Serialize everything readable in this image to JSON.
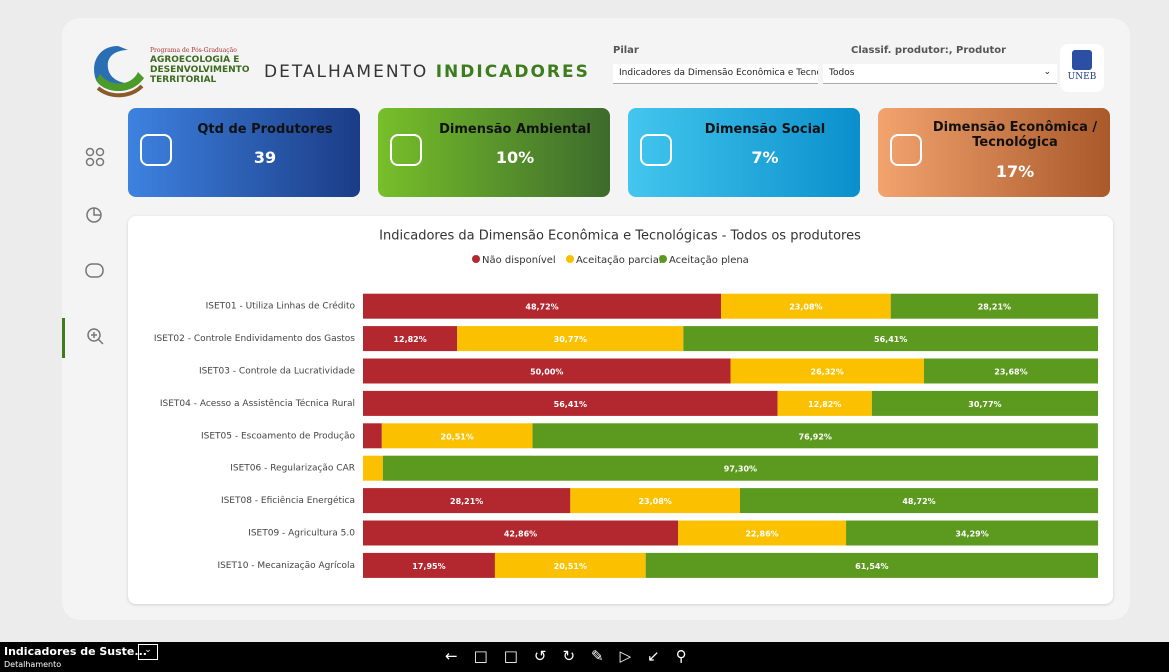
{
  "header": {
    "program": "Programa de Pós-Graduação",
    "logo_lines": [
      "AGROECOLOGIA E",
      "DESENVOLVIMENTO",
      "TERRITORIAL"
    ],
    "title_plain": "DETALHAMENTO",
    "title_accent": "INDICADORES",
    "university": "UNEB"
  },
  "filters": [
    {
      "label": "Pilar",
      "value": "Indicadores da Dimensão Econômica e Tecnológ..."
    },
    {
      "label": "Classif. produtor:, Produtor",
      "value": "Todos"
    }
  ],
  "cards": [
    {
      "title": "Qtd de Produtores",
      "value": "39"
    },
    {
      "title": "Dimensão Ambiental",
      "value": "10%"
    },
    {
      "title": "Dimensão Social",
      "value": "7%"
    },
    {
      "title": "Dimensão Econômica / Tecnológica",
      "value": "17%"
    }
  ],
  "footer": {
    "report": "Indicadores de Suste...",
    "page": "Detalhamento"
  },
  "chart_data": {
    "type": "stacked_bar_horizontal",
    "title": "Indicadores da Dimensão Econômica e Tecnológicas - Todos os produtores",
    "categories": [
      "ISET01 - Utiliza Linhas de Crédito",
      "ISET02 - Controle Endividamento dos Gastos",
      "ISET03 - Controle da Lucratividade",
      "ISET04 - Acesso a Assistência Técnica Rural",
      "ISET05 - Escoamento de Produção",
      "ISET06 - Regularização CAR",
      "ISET08 - Eficiência Energética",
      "ISET09 - Agricultura 5.0",
      "ISET10 - Mecanização Agrícola"
    ],
    "xlim": [
      0,
      100
    ],
    "series": [
      {
        "name": "Não disponível",
        "color": "#b3282e",
        "values": [
          48.72,
          12.82,
          50.0,
          56.41,
          2.56,
          0,
          28.21,
          42.86,
          17.95
        ],
        "value_labels": [
          "48,72%",
          "12,82%",
          "50,00%",
          "56,41%",
          null,
          null,
          "28,21%",
          "42,86%",
          "17,95%"
        ]
      },
      {
        "name": "Aceitação parcial",
        "color": "#fbc100",
        "values": [
          23.08,
          30.77,
          26.32,
          12.82,
          20.51,
          2.7,
          23.08,
          22.86,
          20.51
        ],
        "value_labels": [
          "23,08%",
          "30,77%",
          "26,32%",
          "12,82%",
          "20,51%",
          null,
          "23,08%",
          "22,86%",
          "20,51%"
        ]
      },
      {
        "name": "Aceitação plena",
        "color": "#5b9a1f",
        "values": [
          28.21,
          56.41,
          23.68,
          30.77,
          76.92,
          97.3,
          48.72,
          34.29,
          61.54
        ],
        "value_labels": [
          "28,21%",
          "56,41%",
          "23,68%",
          "30,77%",
          "76,92%",
          "97,30%",
          "48,72%",
          "34,29%",
          "61,54%"
        ]
      }
    ]
  }
}
